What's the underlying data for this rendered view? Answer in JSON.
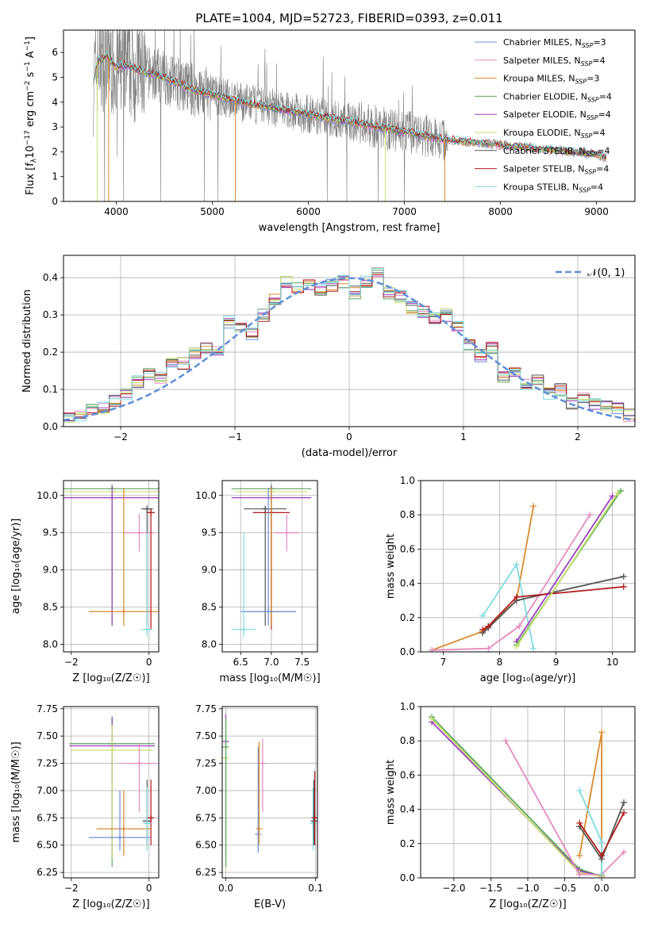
{
  "title": "PLATE=1004, MJD=52723, FIBERID=0393, z=0.011",
  "colors": {
    "Chabrier MILES": "#6a8fd8",
    "Salpeter MILES": "#e58ac0",
    "Kroupa MILES": "#d98a2e",
    "Chabrier ELODIE": "#5aa55a",
    "Salpeter ELODIE": "#9b3fbf",
    "Kroupa ELODIE": "#c7e26b",
    "Chabrier STELIB": "#555555",
    "Salpeter STELIB": "#b01c1c",
    "Kroupa STELIB": "#7fdbe0",
    "data": "#808080",
    "normal": "#5f8fd8"
  },
  "chart_data": [
    {
      "id": "spectrum",
      "type": "line",
      "xlabel": "wavelength [Angstrom, rest frame]",
      "ylabel_tex": [
        "Flux [f",
        "λ",
        "10",
        "−17",
        " erg cm",
        "−2",
        " s",
        "−1",
        " A",
        "−1",
        "]"
      ],
      "xlim": [
        3450,
        9400
      ],
      "ylim": [
        0,
        6.9
      ],
      "xticks": [
        "4000",
        "5000",
        "6000",
        "7000",
        "8000",
        "9000"
      ],
      "yticks": [
        "0",
        "1",
        "2",
        "3",
        "4",
        "5",
        "6"
      ],
      "legend_position": "top-right",
      "legend": [
        {
          "name": "Chabrier MILES",
          "n": "3"
        },
        {
          "name": "Salpeter MILES",
          "n": "4"
        },
        {
          "name": "Kroupa MILES",
          "n": "3"
        },
        {
          "name": "Chabrier ELODIE",
          "n": "4"
        },
        {
          "name": "Salpeter ELODIE",
          "n": "4"
        },
        {
          "name": "Kroupa ELODIE",
          "n": "4"
        },
        {
          "name": "Chabrier STELIB",
          "n": "4"
        },
        {
          "name": "Salpeter STELIB",
          "n": "4"
        },
        {
          "name": "Kroupa STELIB",
          "n": "4"
        }
      ],
      "legend_prefix": "N",
      "legend_sub": "SSP",
      "model_curve": {
        "x": [
          3760,
          3800,
          3900,
          4000,
          4100,
          4300,
          4500,
          4800,
          5000,
          5300,
          5600,
          6000,
          6300,
          6600,
          7000,
          7400,
          7800,
          8200,
          8600,
          9000,
          9100
        ],
        "y": [
          4.8,
          5.6,
          5.9,
          5.4,
          5.5,
          5.2,
          5.0,
          4.5,
          4.3,
          4.0,
          3.8,
          3.5,
          3.3,
          3.1,
          2.8,
          2.5,
          2.35,
          2.2,
          2.05,
          1.9,
          1.75
        ]
      }
    },
    {
      "id": "residuals",
      "type": "line",
      "xlabel": "(data-model)/error",
      "ylabel": "Normed distribution",
      "xlim": [
        -2.5,
        2.5
      ],
      "ylim": [
        0,
        0.46
      ],
      "xticks": [
        "−2",
        "−1",
        "0",
        "1",
        "2"
      ],
      "yticks": [
        "0.0",
        "0.1",
        "0.2",
        "0.3",
        "0.4"
      ],
      "grid": true,
      "legend": "𝒩(0, 1)",
      "legend_position": "top-right",
      "bin_centers": [
        -2.45,
        -2.35,
        -2.25,
        -2.15,
        -2.05,
        -1.95,
        -1.85,
        -1.75,
        -1.65,
        -1.55,
        -1.45,
        -1.35,
        -1.25,
        -1.15,
        -1.05,
        -0.95,
        -0.85,
        -0.75,
        -0.65,
        -0.55,
        -0.45,
        -0.35,
        -0.25,
        -0.15,
        -0.05,
        0.05,
        0.15,
        0.25,
        0.35,
        0.45,
        0.55,
        0.65,
        0.75,
        0.85,
        0.95,
        1.05,
        1.15,
        1.25,
        1.35,
        1.45,
        1.55,
        1.65,
        1.75,
        1.85,
        1.95,
        2.05,
        2.15,
        2.25,
        2.35,
        2.45
      ],
      "hist": [
        0.025,
        0.03,
        0.05,
        0.05,
        0.07,
        0.085,
        0.12,
        0.14,
        0.13,
        0.17,
        0.17,
        0.2,
        0.21,
        0.2,
        0.28,
        0.27,
        0.25,
        0.3,
        0.34,
        0.39,
        0.37,
        0.38,
        0.37,
        0.38,
        0.39,
        0.36,
        0.39,
        0.41,
        0.36,
        0.35,
        0.32,
        0.31,
        0.29,
        0.3,
        0.27,
        0.22,
        0.19,
        0.21,
        0.13,
        0.15,
        0.11,
        0.13,
        0.09,
        0.1,
        0.06,
        0.08,
        0.06,
        0.055,
        0.05,
        0.03
      ]
    },
    {
      "id": "age-vs-Z",
      "type": "scatter",
      "xlabel": "Z [log₁₀(Z/Z☉)]",
      "ylabel": "age  [log₁₀(age/yr)]",
      "xlim": [
        -2.2,
        0.25
      ],
      "ylim": [
        7.9,
        10.2
      ],
      "xticks": [
        "−2",
        "0"
      ],
      "yticks": [
        "8.0",
        "8.5",
        "9.0",
        "9.5",
        "10.0"
      ],
      "grid": true,
      "points": [
        {
          "s": "Chabrier ELODIE",
          "x": -0.95,
          "y": 10.09,
          "xe": 1.25,
          "ye": [
            8.25,
            10.15
          ]
        },
        {
          "s": "Kroupa ELODIE",
          "x": -0.95,
          "y": 10.05,
          "xe": 1.2,
          "ye": [
            8.25,
            10.12
          ]
        },
        {
          "s": "Salpeter ELODIE",
          "x": -0.95,
          "y": 9.97,
          "xe": 1.25,
          "ye": [
            8.25,
            10.13
          ]
        },
        {
          "s": "Kroupa MILES",
          "x": -0.65,
          "y": 8.44,
          "xe": 0.9,
          "ye": [
            8.25,
            10.1
          ]
        },
        {
          "s": "Salpeter MILES",
          "x": -0.25,
          "y": 9.5,
          "xe": 0.4,
          "ye": [
            9.25,
            9.75
          ]
        },
        {
          "s": "Chabrier STELIB",
          "x": -0.05,
          "y": 9.82,
          "xe": 0.15,
          "ye": [
            8.25,
            9.85
          ]
        },
        {
          "s": "Salpeter STELIB",
          "x": 0.05,
          "y": 9.77,
          "xe": 0.1,
          "ye": [
            8.2,
            9.82
          ]
        },
        {
          "s": "Kroupa STELIB",
          "x": -0.05,
          "y": 8.2,
          "xe": 0.15,
          "ye": [
            8.1,
            9.5
          ]
        }
      ]
    },
    {
      "id": "age-vs-mass",
      "type": "scatter",
      "xlabel": "mass [log₁₀(M/M☉)]",
      "xlim": [
        6.2,
        7.75
      ],
      "ylim": [
        7.9,
        10.2
      ],
      "xticks": [
        "6.5",
        "7.0",
        "7.5"
      ],
      "yticks": [
        "8.0",
        "8.5",
        "9.0",
        "9.5",
        "10.0"
      ],
      "grid": true,
      "points": [
        {
          "s": "Chabrier ELODIE",
          "x": 7.0,
          "y": 10.09,
          "xe": 0.65,
          "ye": [
            8.25,
            10.15
          ]
        },
        {
          "s": "Kroupa ELODIE",
          "x": 7.0,
          "y": 10.05,
          "xe": 0.6,
          "ye": [
            8.25,
            10.12
          ]
        },
        {
          "s": "Salpeter ELODIE",
          "x": 7.0,
          "y": 9.97,
          "xe": 0.65,
          "ye": [
            8.25,
            10.13
          ]
        },
        {
          "s": "Chabrier STELIB",
          "x": 6.9,
          "y": 9.82,
          "xe": 0.35,
          "ye": [
            8.25,
            9.85
          ]
        },
        {
          "s": "Salpeter STELIB",
          "x": 7.0,
          "y": 9.77,
          "xe": 0.3,
          "ye": [
            8.2,
            9.82
          ]
        },
        {
          "s": "Salpeter MILES",
          "x": 7.25,
          "y": 9.5,
          "xe": 0.2,
          "ye": [
            9.25,
            9.75
          ]
        },
        {
          "s": "Kroupa MILES",
          "x": 7.0,
          "y": 8.44,
          "xe": 0.4,
          "ye": [
            8.25,
            10.1
          ]
        },
        {
          "s": "Chabrier MILES",
          "x": 6.95,
          "y": 8.44,
          "xe": 0.45,
          "ye": [
            8.25,
            10.1
          ]
        },
        {
          "s": "Kroupa STELIB",
          "x": 6.55,
          "y": 8.2,
          "xe": 0.2,
          "ye": [
            8.1,
            9.5
          ]
        }
      ]
    },
    {
      "id": "massweight-vs-age",
      "type": "line",
      "xlabel": "age  [log₁₀(age/yr)]",
      "ylabel": "mass weight",
      "xlim": [
        6.6,
        10.4
      ],
      "ylim": [
        0,
        1.0
      ],
      "xticks": [
        "7",
        "8",
        "9",
        "10"
      ],
      "yticks": [
        "0.0",
        "0.2",
        "0.4",
        "0.6",
        "0.8",
        "1.0"
      ],
      "grid": true,
      "series": [
        {
          "s": "Kroupa MILES",
          "x": [
            6.8,
            7.7,
            8.3,
            8.6
          ],
          "y": [
            0.01,
            0.12,
            0.3,
            0.85
          ]
        },
        {
          "s": "Salpeter MILES",
          "x": [
            6.8,
            7.8,
            8.35,
            9.6
          ],
          "y": [
            0.01,
            0.02,
            0.15,
            0.8
          ]
        },
        {
          "s": "Kroupa STELIB",
          "x": [
            7.7,
            8.3,
            8.6
          ],
          "y": [
            0.21,
            0.51,
            0.02
          ]
        },
        {
          "s": "Chabrier STELIB",
          "x": [
            7.7,
            7.8,
            8.3,
            10.2
          ],
          "y": [
            0.11,
            0.14,
            0.3,
            0.44
          ]
        },
        {
          "s": "Salpeter STELIB",
          "x": [
            7.7,
            7.8,
            8.3,
            10.2
          ],
          "y": [
            0.13,
            0.15,
            0.32,
            0.38
          ]
        },
        {
          "s": "Salpeter ELODIE",
          "x": [
            8.3,
            10.0
          ],
          "y": [
            0.06,
            0.91
          ]
        },
        {
          "s": "Chabrier ELODIE",
          "x": [
            8.3,
            10.15
          ],
          "y": [
            0.04,
            0.94
          ]
        },
        {
          "s": "Kroupa ELODIE",
          "x": [
            8.3,
            10.1
          ],
          "y": [
            0.03,
            0.93
          ]
        }
      ]
    },
    {
      "id": "mass-vs-Z",
      "type": "scatter",
      "xlabel": "Z [log₁₀(Z/Z☉)]",
      "ylabel": "mass [log₁₀(M/M☉)]",
      "xlim": [
        -2.2,
        0.25
      ],
      "ylim": [
        6.2,
        7.77
      ],
      "xticks": [
        "−2",
        "0"
      ],
      "yticks": [
        "6.25",
        "6.50",
        "6.75",
        "7.00",
        "7.25",
        "7.50",
        "7.75"
      ],
      "grid": true,
      "points": [
        {
          "s": "Chabrier ELODIE",
          "x": -0.95,
          "y": 7.43,
          "xe": 1.1,
          "ye": [
            6.3,
            7.66
          ]
        },
        {
          "s": "Salpeter ELODIE",
          "x": -0.95,
          "y": 7.41,
          "xe": 1.1,
          "ye": [
            6.4,
            7.68
          ]
        },
        {
          "s": "Kroupa ELODIE",
          "x": -0.95,
          "y": 7.37,
          "xe": 1.05,
          "ye": [
            6.38,
            7.6
          ]
        },
        {
          "s": "Salpeter MILES",
          "x": -0.25,
          "y": 7.25,
          "xe": 0.45,
          "ye": [
            6.8,
            7.43
          ]
        },
        {
          "s": "Chabrier STELIB",
          "x": -0.05,
          "y": 6.72,
          "xe": 0.12,
          "ye": [
            6.5,
            7.1
          ]
        },
        {
          "s": "Salpeter STELIB",
          "x": 0.05,
          "y": 6.75,
          "xe": 0.05,
          "ye": [
            6.5,
            7.1
          ]
        },
        {
          "s": "Kroupa MILES",
          "x": -0.65,
          "y": 6.65,
          "xe": 0.7,
          "ye": [
            6.4,
            7.0
          ]
        },
        {
          "s": "Chabrier MILES",
          "x": -0.75,
          "y": 6.57,
          "xe": 0.8,
          "ye": [
            6.45,
            7.0
          ]
        },
        {
          "s": "Kroupa STELIB",
          "x": -0.05,
          "y": 6.7,
          "xe": 0.1,
          "ye": [
            6.45,
            7.03
          ]
        }
      ]
    },
    {
      "id": "mass-vs-EBV",
      "type": "scatter",
      "xlabel": "E(B-V)",
      "xlim": [
        -0.004,
        0.102
      ],
      "ylim": [
        6.2,
        7.77
      ],
      "xticks": [
        "0.0",
        "0.1"
      ],
      "yticks": [
        "6.25",
        "6.50",
        "6.75",
        "7.00",
        "7.25",
        "7.50",
        "7.75"
      ],
      "grid": true,
      "points": [
        {
          "s": "Salpeter ELODIE",
          "x": 0.0,
          "y": 7.45,
          "ye": [
            6.4,
            7.7
          ]
        },
        {
          "s": "Kroupa ELODIE",
          "x": 0.0,
          "y": 7.3,
          "ye": [
            6.28,
            7.65
          ]
        },
        {
          "s": "Chabrier ELODIE",
          "x": 0.0,
          "y": 7.4,
          "ye": [
            6.3,
            7.66
          ]
        },
        {
          "s": "Chabrier MILES",
          "x": 0.036,
          "y": 6.6,
          "ye": [
            6.43,
            7.4
          ]
        },
        {
          "s": "Kroupa MILES",
          "x": 0.037,
          "y": 6.65,
          "ye": [
            6.5,
            7.45
          ]
        },
        {
          "s": "Salpeter MILES",
          "x": 0.041,
          "y": 7.25,
          "ye": [
            6.8,
            7.48
          ]
        },
        {
          "s": "Kroupa STELIB",
          "x": 0.097,
          "y": 6.7,
          "ye": [
            6.45,
            7.03
          ]
        },
        {
          "s": "Chabrier STELIB",
          "x": 0.098,
          "y": 6.72,
          "ye": [
            6.5,
            7.1
          ]
        },
        {
          "s": "Salpeter STELIB",
          "x": 0.099,
          "y": 6.75,
          "ye": [
            6.5,
            7.18
          ]
        }
      ]
    },
    {
      "id": "massweight-vs-Z",
      "type": "line",
      "xlabel": "Z [log₁₀(Z/Z☉)]",
      "ylabel": "mass weight",
      "xlim": [
        -2.45,
        0.45
      ],
      "ylim": [
        0,
        1.0
      ],
      "xticks": [
        "−2.0",
        "−1.5",
        "−1.0",
        "−0.5",
        "0.0"
      ],
      "yticks": [
        "0.0",
        "0.2",
        "0.4",
        "0.6",
        "0.8",
        "1.0"
      ],
      "grid": true,
      "series": [
        {
          "s": "Chabrier ELODIE",
          "x": [
            -2.3,
            -0.3,
            0.0
          ],
          "y": [
            0.94,
            0.05,
            0.01
          ]
        },
        {
          "s": "Salpeter ELODIE",
          "x": [
            -2.3,
            -0.3,
            0.0
          ],
          "y": [
            0.91,
            0.04,
            0.01
          ]
        },
        {
          "s": "Kroupa ELODIE",
          "x": [
            -2.3,
            -0.3,
            0.0
          ],
          "y": [
            0.93,
            0.03,
            0.01
          ]
        },
        {
          "s": "Salpeter MILES",
          "x": [
            -1.3,
            -0.3,
            0.0,
            0.3
          ],
          "y": [
            0.8,
            0.02,
            0.02,
            0.15
          ]
        },
        {
          "s": "Kroupa MILES",
          "x": [
            -0.3,
            0.0,
            0.0
          ],
          "y": [
            0.13,
            0.85,
            0.01
          ]
        },
        {
          "s": "Kroupa STELIB",
          "x": [
            -0.3,
            0.0,
            0.0
          ],
          "y": [
            0.51,
            0.21,
            0.02
          ]
        },
        {
          "s": "Chabrier STELIB",
          "x": [
            -0.3,
            0.0,
            0.3
          ],
          "y": [
            0.3,
            0.11,
            0.44
          ]
        },
        {
          "s": "Salpeter STELIB",
          "x": [
            -0.3,
            0.0,
            0.3
          ],
          "y": [
            0.32,
            0.13,
            0.38
          ]
        }
      ]
    }
  ]
}
